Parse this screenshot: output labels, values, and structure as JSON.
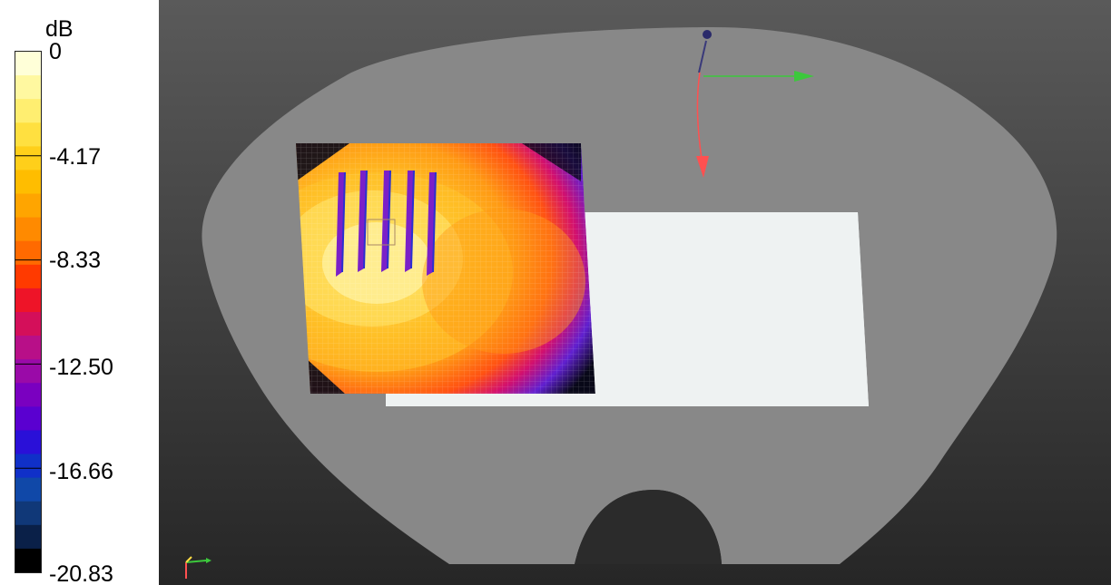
{
  "legend": {
    "unit": "dB",
    "ticks": [
      "0",
      "-4.17",
      "-8.33",
      "-12.50",
      "-16.66",
      "-20.83"
    ],
    "bands": [
      "#ffffd8",
      "#fff8a0",
      "#ffee70",
      "#ffe040",
      "#ffcf1a",
      "#ffbd00",
      "#ffa500",
      "#ff8a00",
      "#ff6a00",
      "#ff3a00",
      "#ee1428",
      "#d40f5a",
      "#b80f88",
      "#9a0aa8",
      "#7a00c0",
      "#5a00d0",
      "#2a10d8",
      "#1030c8",
      "#1048a8",
      "#103878",
      "#0a2048",
      "#000000"
    ]
  },
  "scene": {
    "background_top": "#5a5a5a",
    "background_bottom": "#262626",
    "phantom_color": "#888888",
    "plate_color": "#eef2f2",
    "map_colors": {
      "peak": "#fff2a0",
      "high": "#ffc22a",
      "mid": "#ff9a14",
      "low": "#ff4a10",
      "lower": "#c80e7a",
      "edge": "#4a1ad8",
      "corner": "#080818"
    },
    "axes": {
      "x_color": "#3cc83c",
      "y_color": "#ff5050",
      "z_color": "#3a3a7a"
    }
  }
}
